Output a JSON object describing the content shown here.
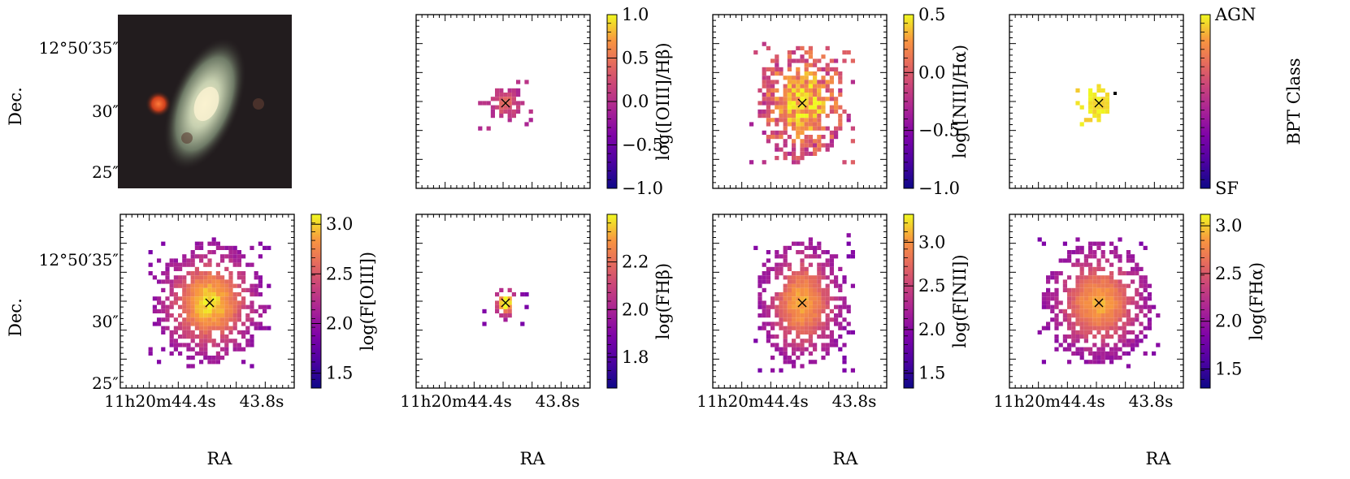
{
  "figure": {
    "panels": [
      {
        "id": "rgb",
        "label": "",
        "cbar": null
      },
      {
        "id": "o3hb",
        "label": "log([OIII]/Hβ)",
        "cbar": {
          "min": -1.0,
          "max": 1.0,
          "ticks": [
            "1.0",
            "0.5",
            "0.0",
            "−0.5",
            "−1.0"
          ],
          "tickvals": [
            1.0,
            0.5,
            0.0,
            -0.5,
            -1.0
          ]
        }
      },
      {
        "id": "n2ha",
        "label": "log([NII]/Hα)",
        "cbar": {
          "min": -1.0,
          "max": 0.5,
          "ticks": [
            "0.5",
            "0.0",
            "−0.5",
            "−1.0"
          ],
          "tickvals": [
            0.5,
            0.0,
            -0.5,
            -1.0
          ]
        }
      },
      {
        "id": "bpt",
        "label": "BPT Class",
        "cbar": {
          "min": 0,
          "max": 1,
          "ticks": [
            "AGN",
            "SF"
          ],
          "tickvals": [
            1,
            0
          ]
        }
      },
      {
        "id": "fo3",
        "label": "log(F[OIII])",
        "cbar": {
          "min": 1.35,
          "max": 3.1,
          "ticks": [
            "3.0",
            "2.5",
            "2.0",
            "1.5"
          ],
          "tickvals": [
            3.0,
            2.5,
            2.0,
            1.5
          ]
        }
      },
      {
        "id": "fhb",
        "label": "log(FHβ)",
        "cbar": {
          "min": 1.67,
          "max": 2.4,
          "ticks": [
            "2.2",
            "2.0",
            "1.8"
          ],
          "tickvals": [
            2.2,
            2.0,
            1.8
          ]
        }
      },
      {
        "id": "fn2",
        "label": "log(F[NII])",
        "cbar": {
          "min": 1.33,
          "max": 3.32,
          "ticks": [
            "3.0",
            "2.5",
            "2.0",
            "1.5"
          ],
          "tickvals": [
            3.0,
            2.5,
            2.0,
            1.5
          ]
        }
      },
      {
        "id": "fha",
        "label": "log(FHα)",
        "cbar": {
          "min": 1.3,
          "max": 3.12,
          "ticks": [
            "3.0",
            "2.5",
            "2.0",
            "1.5"
          ],
          "tickvals": [
            3.0,
            2.5,
            2.0,
            1.5
          ]
        }
      }
    ],
    "axis_text": {
      "dec_label": "Dec.",
      "ra_label": "RA",
      "dec_ticks": [
        "12°50′35″",
        "30″",
        "25″"
      ],
      "ra_ticks": [
        "11h20m44.4s",
        "43.8s"
      ]
    }
  },
  "chart_data": {
    "type": "heatmap",
    "title": "",
    "xlabel": "RA",
    "ylabel": "Dec.",
    "x_ticks": [
      "11h20m44.4s",
      "43.8s"
    ],
    "y_ticks": [
      "12°50′35″",
      "30″",
      "25″"
    ],
    "panels": [
      {
        "quantity": "RGB image",
        "colorbar": null
      },
      {
        "quantity": "log([OIII]/Hβ)",
        "colorbar_range": [
          -1.0,
          1.0
        ],
        "colorbar_ticks": [
          -1.0,
          -0.5,
          0.0,
          0.5,
          1.0
        ]
      },
      {
        "quantity": "log([NII]/Hα)",
        "colorbar_range": [
          -1.0,
          0.5
        ],
        "colorbar_ticks": [
          -1.0,
          -0.5,
          0.0,
          0.5
        ]
      },
      {
        "quantity": "BPT Class",
        "colorbar_ticks": [
          "SF",
          "AGN"
        ]
      },
      {
        "quantity": "log(F[OIII])",
        "colorbar_range": [
          1.35,
          3.1
        ],
        "colorbar_ticks": [
          1.5,
          2.0,
          2.5,
          3.0
        ]
      },
      {
        "quantity": "log(FHβ)",
        "colorbar_range": [
          1.67,
          2.4
        ],
        "colorbar_ticks": [
          1.8,
          2.0,
          2.2
        ]
      },
      {
        "quantity": "log(F[NII])",
        "colorbar_range": [
          1.33,
          3.32
        ],
        "colorbar_ticks": [
          1.5,
          2.0,
          2.5,
          3.0
        ]
      },
      {
        "quantity": "log(FHα)",
        "colorbar_range": [
          1.3,
          3.12
        ],
        "colorbar_ticks": [
          1.5,
          2.0,
          2.5,
          3.0
        ]
      }
    ],
    "colormap": "plasma",
    "grid": false
  }
}
